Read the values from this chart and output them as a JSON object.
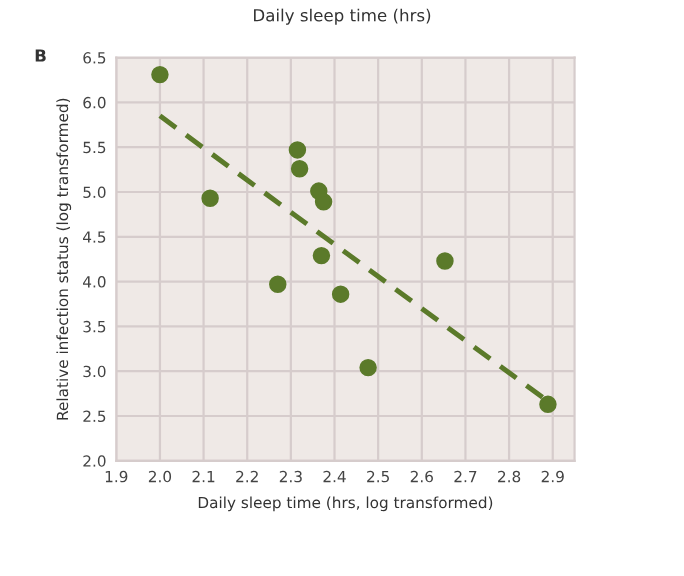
{
  "chart_data": {
    "type": "scatter",
    "xlabel": "Daily sleep time (hrs, log transformed)",
    "ylabel": "Relative infection status (log transformed)",
    "annotations": [
      "Daily sleep time (hrs)",
      "B"
    ],
    "series": [
      {
        "color": "#5b7a2a",
        "marker": "circle",
        "x": [
          2.0,
          2.115,
          2.27,
          2.315,
          2.32,
          2.364,
          2.375,
          2.37,
          2.414,
          2.477,
          2.653,
          2.889
        ],
        "values": [
          6.31,
          4.93,
          3.97,
          5.47,
          5.26,
          5.01,
          4.89,
          4.29,
          3.86,
          3.04,
          4.23,
          2.63
        ]
      },
      {
        "type": "line",
        "color": "#5b7a2a",
        "line_style": "dashed",
        "marker": "none",
        "x": [
          2.0,
          2.89
        ],
        "values": [
          5.85,
          2.66
        ]
      }
    ],
    "xlim": [
      1.9,
      2.95
    ],
    "ylim": [
      2.0,
      6.5
    ],
    "xticks": [
      1.9,
      {
        "value": 2,
        "label": "2.0"
      },
      2.1,
      2.2,
      2.3,
      2.4,
      2.5,
      2.6,
      2.7,
      2.8,
      2.9
    ],
    "yticks": [
      {
        "value": 2,
        "label": "2.0"
      },
      2.5,
      {
        "value": 3,
        "label": "3.0"
      },
      3.5,
      {
        "value": 4,
        "label": "4.0"
      },
      4.5,
      {
        "value": 5,
        "label": "5.0"
      },
      5.5,
      {
        "value": 6,
        "label": "6.0"
      },
      6.5
    ],
    "grid": true,
    "legend": false
  }
}
